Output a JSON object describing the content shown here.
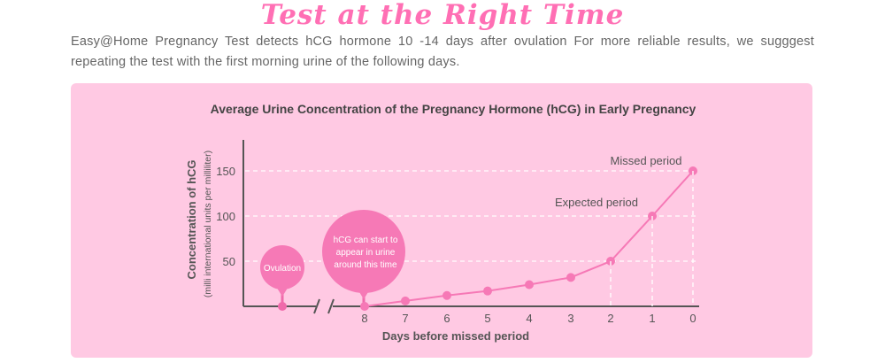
{
  "page": {
    "headline": "Test at the Right Time",
    "intro": "Easy@Home Pregnancy Test detects hCG hormone 10 -14 days after ovulation For more reliable results, we sugggest repeating the test with the first morning urine of the following days."
  },
  "colors": {
    "headline": "#ff6fb4",
    "panel": "#ffc9e3",
    "accent": "#f679b6",
    "axis": "#555555"
  },
  "chart_data": {
    "type": "line",
    "title": "Average Urine Concentration of the Pregnancy Hormone (hCG) in Early Pregnancy",
    "xlabel": "Days before missed period",
    "ylabel": "Concentration of hCG",
    "ylabel_sub": "(milli international units per milliliter)",
    "x": [
      8,
      7,
      6,
      5,
      4,
      3,
      2,
      1,
      0
    ],
    "y_ticks": [
      50,
      100,
      150
    ],
    "ylim": [
      0,
      175
    ],
    "grid": "dashed guide lines at 50, 100, 150",
    "series": [
      {
        "values": [
          0,
          6,
          12,
          17,
          24,
          32,
          50,
          100,
          150
        ]
      }
    ],
    "annotations": {
      "ovulation": "Ovulation",
      "hcg_start": [
        "hCG can start to",
        "appear in urine",
        "around this time"
      ],
      "expected_period": "Expected period",
      "missed_period": "Missed period"
    }
  }
}
